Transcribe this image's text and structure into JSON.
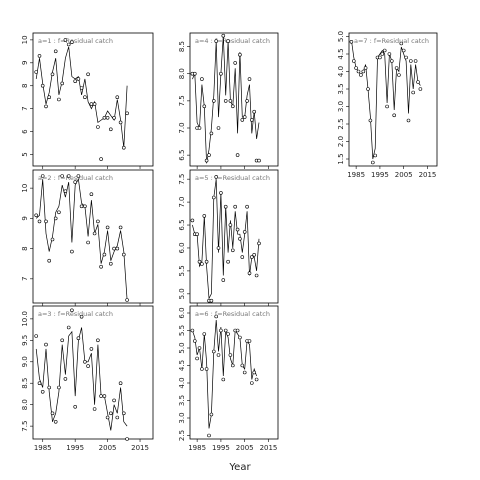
{
  "chart_data": {
    "type": "line",
    "xlabel": "Year",
    "x_ticks": [
      "1985",
      "1995",
      "2005",
      "2015"
    ],
    "panels": [
      {
        "title": "a=1  :  f=Residual catch",
        "ylim": [
          4.5,
          10.3
        ],
        "yticks": [
          "5",
          "6",
          "7",
          "8",
          "9",
          "10"
        ],
        "xticks_visible": false,
        "years": [
          1983,
          1984,
          1985,
          1986,
          1987,
          1988,
          1989,
          1990,
          1991,
          1992,
          1993,
          1994,
          1995,
          1996,
          1997,
          1998,
          1999,
          2000,
          2001,
          2002,
          2003,
          2004,
          2005,
          2006,
          2007,
          2008,
          2009,
          2010,
          2011,
          2012,
          2013,
          2014,
          2015,
          2016,
          2017
        ],
        "points": [
          8.6,
          9.3,
          8.0,
          7.1,
          7.5,
          8.5,
          9.5,
          7.4,
          8.1,
          10.0,
          9.8,
          9.9,
          8.2,
          8.3,
          7.9,
          7.5,
          8.5,
          7.2,
          7.2,
          6.2,
          4.8,
          6.6,
          6.6,
          6.1,
          6.6,
          7.5,
          6.4,
          5.3,
          6.8
        ],
        "line": [
          8.3,
          9.2,
          8.1,
          7.2,
          7.7,
          8.6,
          9.2,
          7.6,
          8.2,
          9.2,
          9.7,
          8.4,
          8.3,
          8.4,
          7.6,
          8.3,
          7.3,
          7.0,
          7.3,
          6.4,
          6.5,
          6.6,
          6.9,
          6.7,
          6.5,
          7.4,
          6.5,
          5.3,
          8.0
        ]
      },
      {
        "title": "a=2  :  f=Residual catch",
        "ylim": [
          6.2,
          10.6
        ],
        "yticks": [
          "7",
          "8",
          "9",
          "10"
        ],
        "xticks_visible": false,
        "years": [
          1983,
          1984,
          1985,
          1986,
          1987,
          1988,
          1989,
          1990,
          1991,
          1992,
          1993,
          1994,
          1995,
          1996,
          1997,
          1998,
          1999,
          2000,
          2001,
          2002,
          2003,
          2004,
          2005,
          2006,
          2007,
          2008,
          2009,
          2010,
          2011,
          2012,
          2013,
          2014,
          2015,
          2016,
          2017
        ],
        "points": [
          9.1,
          8.9,
          10.4,
          8.9,
          7.6,
          8.3,
          9.0,
          9.2,
          10.4,
          9.9,
          10.4,
          7.9,
          10.2,
          10.4,
          9.4,
          9.4,
          8.2,
          9.8,
          8.5,
          8.9,
          7.4,
          7.8,
          8.7,
          7.5,
          8.0,
          8.0,
          8.7,
          7.8,
          6.3
        ],
        "line": [
          9.0,
          9.1,
          10.3,
          8.5,
          7.9,
          8.4,
          9.2,
          9.4,
          10.1,
          9.7,
          10.2,
          8.2,
          10.1,
          10.3,
          9.5,
          9.4,
          8.4,
          9.6,
          8.5,
          8.8,
          7.5,
          7.9,
          8.6,
          7.6,
          7.9,
          8.1,
          8.6,
          7.9,
          6.3
        ]
      },
      {
        "title": "a=3  :  f=Residual catch",
        "ylim": [
          7.2,
          10.3
        ],
        "yticks": [
          "7.5",
          "8.0",
          "8.5",
          "9.0",
          "9.5",
          "10.0"
        ],
        "xticks_visible": true,
        "years": [
          1983,
          1984,
          1985,
          1986,
          1987,
          1988,
          1989,
          1990,
          1991,
          1992,
          1993,
          1994,
          1995,
          1996,
          1997,
          1998,
          1999,
          2000,
          2001,
          2002,
          2003,
          2004,
          2005,
          2006,
          2007,
          2008,
          2009,
          2010,
          2011,
          2012,
          2013,
          2014,
          2015,
          2016,
          2017
        ],
        "points": [
          9.6,
          8.5,
          8.3,
          9.4,
          8.4,
          7.8,
          7.6,
          8.4,
          9.5,
          8.6,
          9.8,
          10.2,
          7.95,
          9.55,
          10.05,
          9.0,
          8.9,
          9.3,
          7.9,
          9.5,
          8.2,
          8.2,
          7.7,
          7.8,
          8.1,
          7.7,
          8.5,
          7.8,
          7.2
        ],
        "line": [
          9.3,
          8.6,
          8.4,
          9.3,
          8.3,
          7.6,
          7.8,
          8.3,
          9.4,
          8.7,
          9.6,
          9.7,
          8.2,
          9.5,
          9.8,
          9.0,
          9.0,
          9.2,
          8.0,
          9.4,
          8.2,
          8.2,
          7.8,
          7.4,
          8.0,
          7.8,
          8.4,
          7.6,
          7.5
        ]
      },
      {
        "title": "a=4  :  f=Residual catch",
        "ylim": [
          6.3,
          8.75
        ],
        "yticks": [
          "6.5",
          "7.0",
          "7.5",
          "8.0",
          "8.5"
        ],
        "xticks_visible": false,
        "years": [
          1983,
          1984,
          1985,
          1986,
          1987,
          1988,
          1989,
          1990,
          1991,
          1992,
          1993,
          1994,
          1995,
          1996,
          1997,
          1998,
          1999,
          2000,
          2001,
          2002,
          2003,
          2004,
          2005,
          2006,
          2007,
          2008,
          2009,
          2010,
          2011,
          2012,
          2013,
          2014,
          2015,
          2016,
          2017
        ],
        "points": [
          8.0,
          8.0,
          7.0,
          7.0,
          7.9,
          7.4,
          6.4,
          6.5,
          6.9,
          7.5,
          8.6,
          7.0,
          8.0,
          8.7,
          7.5,
          8.6,
          7.5,
          7.4,
          8.2,
          6.5,
          8.35,
          7.15,
          7.2,
          7.5,
          7.9,
          7.15,
          7.3,
          6.4,
          6.4
        ],
        "line": [
          7.9,
          8.0,
          7.1,
          7.0,
          7.8,
          7.4,
          6.35,
          6.6,
          7.0,
          7.6,
          8.6,
          7.2,
          8.0,
          8.7,
          7.6,
          8.6,
          7.5,
          7.4,
          8.1,
          6.9,
          8.4,
          7.2,
          7.2,
          7.6,
          7.8,
          6.9,
          7.3,
          6.8,
          7.1
        ]
      },
      {
        "title": "a=5  :  f=Residual catch",
        "ylim": [
          4.8,
          7.7
        ],
        "yticks": [
          "5.0",
          "5.5",
          "6.0",
          "6.5",
          "7.0",
          "7.5"
        ],
        "xticks_visible": false,
        "years": [
          1983,
          1984,
          1985,
          1986,
          1987,
          1988,
          1989,
          1990,
          1991,
          1992,
          1993,
          1994,
          1995,
          1996,
          1997,
          1998,
          1999,
          2000,
          2001,
          2002,
          2003,
          2004,
          2005,
          2006,
          2007,
          2008,
          2009,
          2010,
          2011,
          2012,
          2013,
          2014,
          2015,
          2016,
          2017
        ],
        "points": [
          6.6,
          6.3,
          6.3,
          5.7,
          5.65,
          6.7,
          5.7,
          4.85,
          4.85,
          7.1,
          7.55,
          6.0,
          7.2,
          5.3,
          6.9,
          5.7,
          6.5,
          5.95,
          6.9,
          6.4,
          6.2,
          5.8,
          6.35,
          6.9,
          5.45,
          5.8,
          5.85,
          5.4,
          6.1
        ],
        "line": [
          6.5,
          6.3,
          6.3,
          5.6,
          5.7,
          6.7,
          5.6,
          4.9,
          5.0,
          7.1,
          7.5,
          5.9,
          7.2,
          5.4,
          6.9,
          5.9,
          6.6,
          6.0,
          6.8,
          6.3,
          6.3,
          5.9,
          6.3,
          6.8,
          5.4,
          5.8,
          5.8,
          5.5,
          6.2
        ]
      },
      {
        "title": "a=6  :  f=Residual catch",
        "ylim": [
          2.4,
          6.2
        ],
        "yticks": [
          "2.5",
          "3.0",
          "3.5",
          "4.0",
          "4.5",
          "5.0",
          "5.5",
          "6.0"
        ],
        "xticks_visible": true,
        "years": [
          1983,
          1984,
          1985,
          1986,
          1987,
          1988,
          1989,
          1990,
          1991,
          1992,
          1993,
          1994,
          1995,
          1996,
          1997,
          1998,
          1999,
          2000,
          2001,
          2002,
          2003,
          2004,
          2005,
          2006,
          2007,
          2008,
          2009,
          2010,
          2011,
          2012,
          2013,
          2014,
          2015,
          2016,
          2017
        ],
        "points": [
          5.5,
          5.2,
          4.7,
          5.0,
          4.4,
          5.4,
          4.4,
          2.5,
          3.1,
          4.9,
          5.9,
          4.8,
          5.5,
          4.1,
          5.5,
          5.4,
          4.8,
          4.5,
          5.5,
          5.5,
          5.3,
          4.5,
          4.3,
          5.2,
          5.2,
          4.0,
          4.3,
          4.1
        ],
        "line": [
          5.5,
          5.3,
          4.8,
          5.0,
          4.4,
          5.4,
          4.6,
          2.7,
          3.1,
          4.9,
          5.8,
          4.9,
          5.6,
          4.2,
          5.5,
          5.3,
          4.7,
          4.5,
          5.5,
          5.4,
          5.3,
          4.5,
          4.4,
          5.2,
          5.1,
          4.1,
          4.4,
          4.2
        ]
      },
      {
        "title": "a=7  :  f=Residual catch",
        "ylim": [
          1.3,
          5.1
        ],
        "yticks": [
          "1.5",
          "2.0",
          "2.5",
          "3.0",
          "3.5",
          "4.0",
          "4.5",
          "5.0"
        ],
        "xticks_visible": true,
        "years": [
          1983,
          1984,
          1985,
          1986,
          1987,
          1988,
          1989,
          1990,
          1991,
          1992,
          1993,
          1994,
          1995,
          1996,
          1997,
          1998,
          1999,
          2000,
          2001,
          2002,
          2003,
          2004,
          2005,
          2006,
          2007,
          2008,
          2009,
          2010,
          2011,
          2012,
          2013,
          2014,
          2015,
          2016,
          2017
        ],
        "points": [
          4.85,
          4.3,
          4.1,
          4.0,
          3.9,
          4.0,
          4.1,
          3.5,
          2.6,
          1.4,
          1.6,
          4.4,
          4.4,
          4.5,
          4.6,
          3.0,
          4.5,
          4.3,
          2.75,
          4.1,
          3.9,
          4.8,
          4.6,
          4.4,
          2.6,
          4.3,
          3.4,
          4.3,
          3.7,
          3.5
        ],
        "line": [
          4.9,
          4.4,
          4.1,
          4.0,
          3.9,
          4.0,
          4.2,
          3.5,
          2.7,
          1.5,
          1.8,
          4.4,
          4.5,
          4.6,
          4.5,
          3.1,
          4.5,
          4.3,
          2.9,
          4.1,
          4.0,
          4.7,
          4.5,
          4.3,
          2.8,
          4.2,
          3.5,
          4.2,
          3.7,
          3.6
        ]
      }
    ]
  }
}
